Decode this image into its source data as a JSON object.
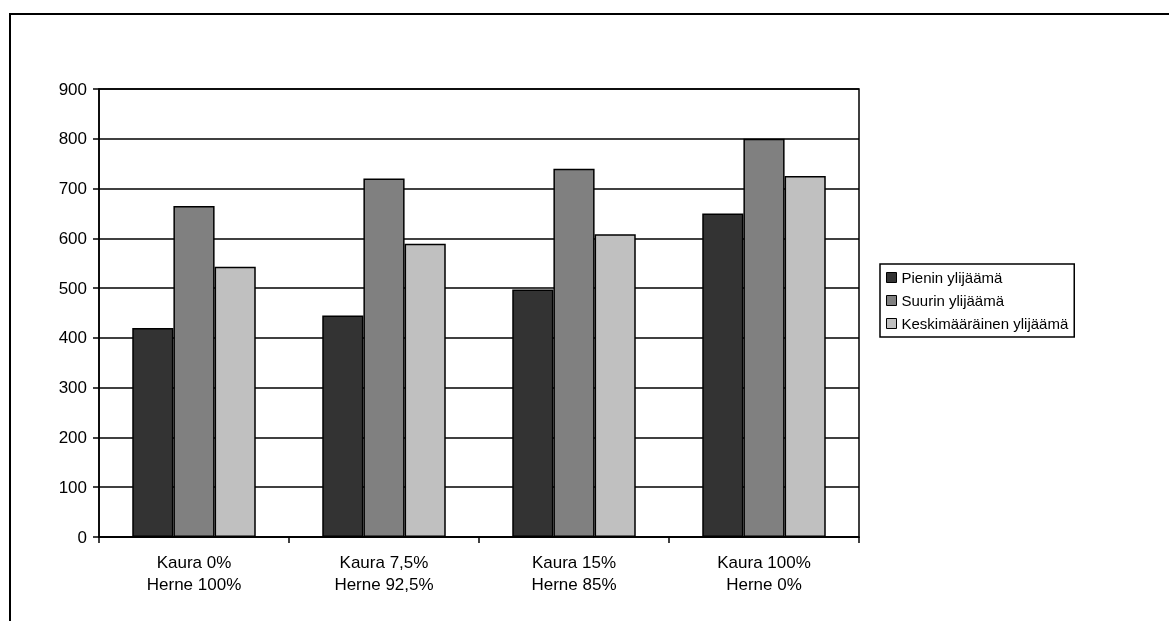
{
  "chart_data": {
    "type": "bar",
    "categories": [
      "Kaura 0%\nHerne 100%",
      "Kaura 7,5%\nHerne 92,5%",
      "Kaura 15%\nHerne 85%",
      "Kaura 100%\nHerne 0%"
    ],
    "series": [
      {
        "name": "Pienin ylijäämä",
        "color": "#333333",
        "values": [
          420,
          445,
          497,
          650
        ]
      },
      {
        "name": "Suurin ylijäämä",
        "color": "#808080",
        "values": [
          665,
          720,
          740,
          800
        ]
      },
      {
        "name": "Keskimääräinen ylijäämä",
        "color": "#c0c0c0",
        "values": [
          543,
          589,
          608,
          725
        ]
      }
    ],
    "ylim": [
      0,
      900
    ],
    "yticks": [
      0,
      100,
      200,
      300,
      400,
      500,
      600,
      700,
      800,
      900
    ],
    "grid": "y",
    "legend": "right"
  }
}
